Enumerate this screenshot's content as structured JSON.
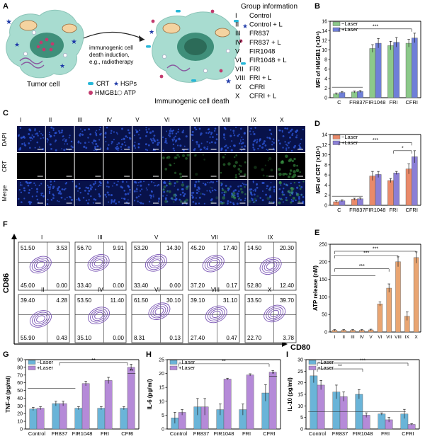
{
  "panel_letters": [
    "A",
    "B",
    "C",
    "D",
    "F",
    "E",
    "G",
    "H",
    "I"
  ],
  "colors": {
    "minus_laser_green": "#8cc98a",
    "plus_laser_blue": "#6f7fd8",
    "minus_laser_orange": "#e98a6a",
    "plus_laser_purple": "#8b7fd6",
    "atp_bar": "#e9a572",
    "cell_fill": "#a8dcd0",
    "nucleus_fill": "#3f8f7a",
    "flow_contour": "#7a55b5",
    "micro_blue": "#0b1a6e",
    "micro_green": "#1f5a2a"
  },
  "panel_a": {
    "left_label": "Tumor cell",
    "right_label": "Immunogenic cell death",
    "arrow_text": [
      "immunogenic cell",
      "death induction,",
      "e.g., radiotherapy"
    ],
    "legend": [
      {
        "label": "CRT",
        "icon": "cyan-capsule-icon"
      },
      {
        "label": "HSPs",
        "icon": "blue-star-icon"
      },
      {
        "label": "HMGB1",
        "icon": "magenta-dot-icon"
      },
      {
        "label": "ATP",
        "icon": "white-circle-icon"
      }
    ],
    "group_title": "Group information",
    "groups": [
      {
        "num": "I",
        "name": "Control"
      },
      {
        "num": "II",
        "name": "Control + L"
      },
      {
        "num": "III",
        "name": "FR837"
      },
      {
        "num": "IV",
        "name": "FR837 + L"
      },
      {
        "num": "V",
        "name": "FIR1048"
      },
      {
        "num": "VI",
        "name": "FIR1048 + L"
      },
      {
        "num": "VII",
        "name": "FRI"
      },
      {
        "num": "VIII",
        "name": "FRI + L"
      },
      {
        "num": "IX",
        "name": "CFRI"
      },
      {
        "num": "X",
        "name": "CFRI + L"
      }
    ]
  },
  "panel_c": {
    "columns": [
      "I",
      "II",
      "III",
      "IV",
      "V",
      "VI",
      "VII",
      "VIII",
      "IX",
      "X"
    ],
    "rows": [
      "DAPI",
      "CRT",
      "Merge"
    ],
    "crt_green_level": [
      0,
      0,
      0,
      0,
      0,
      0.55,
      0.15,
      0.6,
      0.25,
      0.75
    ]
  },
  "panel_f": {
    "y_axis": "CD86",
    "x_axis": "CD80",
    "plots": [
      {
        "label": "I",
        "ul": "51.50",
        "ur": "3.53",
        "ll": "45.00",
        "lr": "0.00"
      },
      {
        "label": "III",
        "ul": "56.70",
        "ur": "9.91",
        "ll": "33.40",
        "lr": "0.00"
      },
      {
        "label": "V",
        "ul": "53.20",
        "ur": "14.30",
        "ll": "33.40",
        "lr": "0.00"
      },
      {
        "label": "VII",
        "ul": "45.20",
        "ur": "17.40",
        "ll": "37.20",
        "lr": "0.17"
      },
      {
        "label": "IX",
        "ul": "14.50",
        "ur": "20.30",
        "ll": "52.80",
        "lr": "12.40"
      },
      {
        "label": "II",
        "ul": "39.40",
        "ur": "4.28",
        "ll": "55.90",
        "lr": "0.43"
      },
      {
        "label": "IV",
        "ul": "53.50",
        "ur": "11.40",
        "ll": "35.10",
        "lr": "0.00"
      },
      {
        "label": "VI",
        "ul": "61.50",
        "ur": "30.10",
        "ll": "8.31",
        "lr": "0.13"
      },
      {
        "label": "VIII",
        "ul": "39.10",
        "ur": "31.10",
        "ll": "27.40",
        "lr": "0.47"
      },
      {
        "label": "X",
        "ul": "33.50",
        "ur": "39.70",
        "ll": "22.70",
        "lr": "3.78"
      }
    ]
  },
  "chart_data": [
    {
      "id": "B",
      "type": "bar",
      "ylabel": "MFI of HMGB1 (×10⁴)",
      "ylim": [
        0,
        16
      ],
      "yticks": [
        0,
        2,
        4,
        6,
        8,
        10,
        12,
        14,
        16
      ],
      "categories": [
        "C",
        "FR837",
        "FIR1048",
        "FRI",
        "CFRI"
      ],
      "series": [
        {
          "name": "−Laser",
          "color": "#8cc98a",
          "values": [
            0.8,
            1.2,
            10.3,
            10.9,
            11.4
          ],
          "errors": [
            0.2,
            0.2,
            0.8,
            0.9,
            0.8
          ]
        },
        {
          "name": "+Laser",
          "color": "#6f7fd8",
          "values": [
            1.1,
            1.3,
            11.4,
            11.6,
            12.5
          ],
          "errors": [
            0.2,
            0.2,
            1.0,
            1.0,
            1.0
          ]
        }
      ],
      "legend": "top-left",
      "significance": [
        "***"
      ]
    },
    {
      "id": "D",
      "type": "bar",
      "ylabel": "MFI of CRT (×10⁴)",
      "ylim": [
        0,
        14
      ],
      "yticks": [
        0,
        2,
        4,
        6,
        8,
        10,
        12,
        14
      ],
      "categories": [
        "C",
        "FR837",
        "FIR1048",
        "FRI",
        "CFRI"
      ],
      "series": [
        {
          "name": "−Laser",
          "color": "#e98a6a",
          "values": [
            0.7,
            1.2,
            5.8,
            4.9,
            7.2
          ],
          "errors": [
            0.2,
            0.2,
            0.9,
            0.4,
            1.0
          ]
        },
        {
          "name": "+Laser",
          "color": "#8b7fd6",
          "values": [
            0.9,
            1.3,
            6.1,
            6.4,
            9.6
          ],
          "errors": [
            0.2,
            0.2,
            0.6,
            0.3,
            1.2
          ]
        }
      ],
      "legend": "top-left",
      "significance": [
        "***",
        "*"
      ]
    },
    {
      "id": "E",
      "type": "bar",
      "ylabel": "ATP release (nM)",
      "ylim": [
        0,
        250
      ],
      "yticks": [
        0,
        50,
        100,
        150,
        200,
        250
      ],
      "categories": [
        "I",
        "II",
        "III",
        "IV",
        "V",
        "VI",
        "VII",
        "VIII",
        "IX",
        "X"
      ],
      "series": [
        {
          "name": "",
          "color": "#e9a572",
          "values": [
            5,
            5,
            5,
            5,
            6,
            80,
            125,
            200,
            45,
            212
          ],
          "errors": [
            2,
            2,
            2,
            2,
            2,
            6,
            12,
            14,
            12,
            16
          ]
        }
      ],
      "significance": [
        "***",
        "***",
        "***"
      ]
    },
    {
      "id": "G",
      "type": "bar",
      "ylabel": "TNF-α (pg/ml)",
      "ylim": [
        0,
        90
      ],
      "yticks": [
        0,
        10,
        20,
        30,
        40,
        50,
        60,
        70,
        80,
        90
      ],
      "categories": [
        "Control",
        "FR837",
        "FIR1048",
        "FRI",
        "CFRI"
      ],
      "series": [
        {
          "name": "−Laser",
          "color": "#6ab4d8",
          "values": [
            26,
            33,
            27,
            27,
            27
          ],
          "errors": [
            2,
            3,
            2,
            2,
            2
          ]
        },
        {
          "name": "+Laser",
          "color": "#b58ad8",
          "values": [
            27,
            33,
            59,
            63,
            80
          ],
          "errors": [
            2,
            3,
            3,
            4,
            4
          ]
        }
      ],
      "legend": "top-left",
      "significance": [
        "**",
        "**"
      ]
    },
    {
      "id": "H",
      "type": "bar",
      "ylabel": "IL-6 (pg/ml)",
      "ylim": [
        0,
        25
      ],
      "yticks": [
        0,
        5,
        10,
        15,
        20,
        25
      ],
      "categories": [
        "Control",
        "FR837",
        "FIR1048",
        "FRI",
        "CFRI"
      ],
      "series": [
        {
          "name": "−Laser",
          "color": "#6ab4d8",
          "values": [
            4,
            8,
            7,
            7,
            13
          ],
          "errors": [
            2,
            3,
            2,
            2,
            3
          ]
        },
        {
          "name": "+Laser",
          "color": "#b58ad8",
          "values": [
            6,
            8,
            18,
            19.5,
            20.5
          ],
          "errors": [
            1,
            3,
            0.3,
            0.4,
            0.6
          ]
        }
      ],
      "legend": "top-left",
      "significance": [
        "**",
        "*"
      ]
    },
    {
      "id": "I",
      "type": "bar",
      "ylabel": "IL-10 (pg/ml)",
      "ylim": [
        0,
        30
      ],
      "yticks": [
        0,
        5,
        10,
        15,
        20,
        25,
        30
      ],
      "categories": [
        "Control",
        "FR837",
        "FIR1048",
        "FRI",
        "CFRI"
      ],
      "series": [
        {
          "name": "−Laser",
          "color": "#6ab4d8",
          "values": [
            23,
            16,
            15,
            6.5,
            6.5
          ],
          "errors": [
            3,
            3,
            2,
            0.5,
            2
          ]
        },
        {
          "name": "+Laser",
          "color": "#b58ad8",
          "values": [
            19,
            14,
            6,
            4,
            2
          ],
          "errors": [
            2,
            2,
            1,
            1,
            0.3
          ]
        }
      ],
      "legend": "top-left",
      "significance": [
        "**",
        "***"
      ]
    }
  ]
}
